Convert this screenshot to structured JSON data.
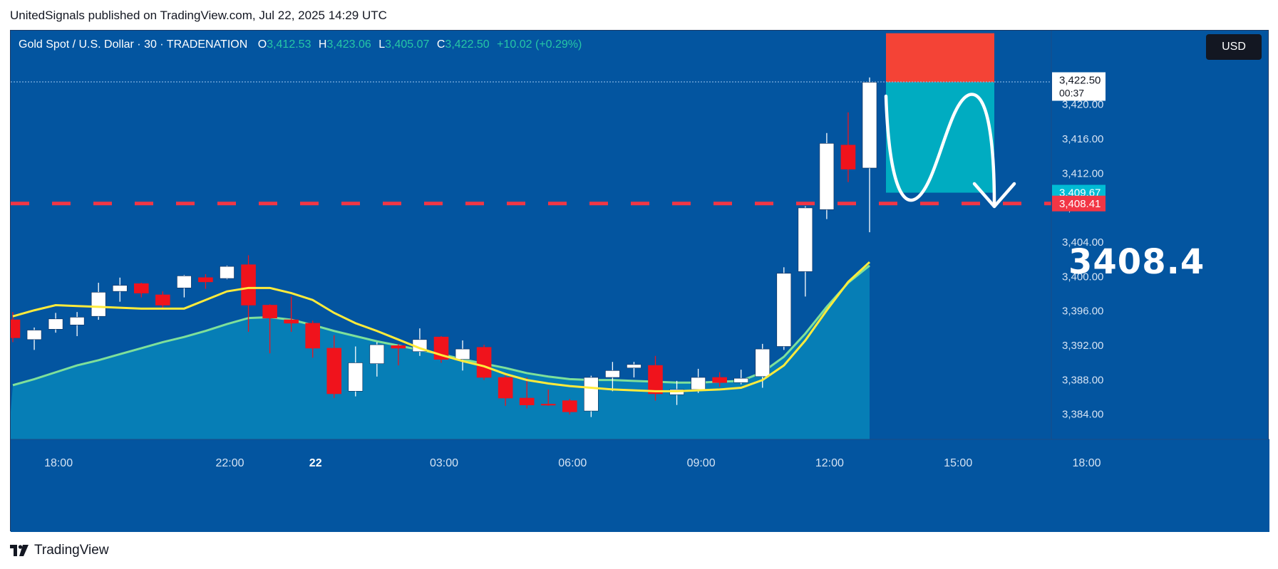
{
  "header": {
    "published": "UnitedSignals published on TradingView.com, Jul 22, 2025 14:29 UTC"
  },
  "legend": {
    "symbol": "Gold Spot / U.S. Dollar · 30 · TRADENATION",
    "open_label": "O",
    "open": "3,412.53",
    "high_label": "H",
    "high": "3,423.06",
    "low_label": "L",
    "low": "3,405.07",
    "close_label": "C",
    "close": "3,422.50",
    "change": "+10.02 (+0.29%)"
  },
  "currency_button": "USD",
  "target_label": "3408.4",
  "footer": {
    "brand": "TradingView"
  },
  "colors": {
    "background": "#0355a0",
    "up_candle": "#ffffff",
    "down_candle": "#f0131c",
    "yellow_ma": "#ffeb3b",
    "green_ma": "#7ee09a",
    "area_fill": "#0aa0c8",
    "stop_zone": "#f44336",
    "target_zone": "#00acc1",
    "dashed_line": "#f23645"
  },
  "chart_data": {
    "type": "candlestick",
    "interval": "30",
    "ylim": [
      3381.0,
      3428.5
    ],
    "y_ticks": [
      "3,384.00",
      "3,388.00",
      "3,392.00",
      "3,396.00",
      "3,400.00",
      "3,404.00",
      "3,408.00",
      "3,412.00",
      "3,416.00",
      "3,420.00"
    ],
    "y_tick_values": [
      3384,
      3388,
      3392,
      3396,
      3400,
      3404,
      3408,
      3412,
      3416,
      3420
    ],
    "x_ticks": [
      "18:00",
      "22:00",
      "22",
      "03:00",
      "06:00",
      "09:00",
      "12:00",
      "15:00",
      "18:00"
    ],
    "x_tick_index": [
      2,
      10,
      14,
      20,
      26,
      32,
      38,
      44,
      50
    ],
    "candles": [
      {
        "o": 3394.9,
        "h": 3395.8,
        "l": 3392.3,
        "c": 3392.8
      },
      {
        "o": 3392.6,
        "h": 3394.0,
        "l": 3391.4,
        "c": 3393.7
      },
      {
        "o": 3393.8,
        "h": 3395.7,
        "l": 3393.4,
        "c": 3395.0
      },
      {
        "o": 3394.3,
        "h": 3395.8,
        "l": 3393.0,
        "c": 3395.2
      },
      {
        "o": 3395.3,
        "h": 3399.2,
        "l": 3394.9,
        "c": 3398.1
      },
      {
        "o": 3398.2,
        "h": 3399.8,
        "l": 3397.0,
        "c": 3398.9
      },
      {
        "o": 3399.1,
        "h": 3399.2,
        "l": 3397.5,
        "c": 3398.0
      },
      {
        "o": 3397.8,
        "h": 3398.2,
        "l": 3396.3,
        "c": 3396.6
      },
      {
        "o": 3398.6,
        "h": 3400.1,
        "l": 3397.5,
        "c": 3400.0
      },
      {
        "o": 3399.8,
        "h": 3400.2,
        "l": 3398.5,
        "c": 3399.3
      },
      {
        "o": 3399.7,
        "h": 3401.2,
        "l": 3399.6,
        "c": 3401.1
      },
      {
        "o": 3401.3,
        "h": 3402.4,
        "l": 3393.5,
        "c": 3396.6
      },
      {
        "o": 3396.6,
        "h": 3396.7,
        "l": 3391.0,
        "c": 3395.1
      },
      {
        "o": 3394.9,
        "h": 3397.6,
        "l": 3393.5,
        "c": 3394.5
      },
      {
        "o": 3394.5,
        "h": 3394.8,
        "l": 3390.5,
        "c": 3391.6
      },
      {
        "o": 3391.6,
        "h": 3393.1,
        "l": 3385.8,
        "c": 3386.3
      },
      {
        "o": 3386.6,
        "h": 3391.8,
        "l": 3386.0,
        "c": 3389.9
      },
      {
        "o": 3389.8,
        "h": 3392.3,
        "l": 3388.3,
        "c": 3392.0
      },
      {
        "o": 3391.9,
        "h": 3392.1,
        "l": 3389.6,
        "c": 3391.6
      },
      {
        "o": 3391.2,
        "h": 3393.9,
        "l": 3390.7,
        "c": 3392.6
      },
      {
        "o": 3392.9,
        "h": 3393.0,
        "l": 3389.9,
        "c": 3390.3
      },
      {
        "o": 3390.3,
        "h": 3392.5,
        "l": 3389.0,
        "c": 3391.5
      },
      {
        "o": 3391.7,
        "h": 3392.0,
        "l": 3387.9,
        "c": 3388.2
      },
      {
        "o": 3388.2,
        "h": 3388.7,
        "l": 3384.9,
        "c": 3385.8
      },
      {
        "o": 3385.8,
        "h": 3388.2,
        "l": 3384.6,
        "c": 3385.0
      },
      {
        "o": 3385.1,
        "h": 3386.8,
        "l": 3384.9,
        "c": 3385.0
      },
      {
        "o": 3385.5,
        "h": 3385.7,
        "l": 3383.9,
        "c": 3384.2
      },
      {
        "o": 3384.3,
        "h": 3388.4,
        "l": 3383.6,
        "c": 3388.2
      },
      {
        "o": 3388.2,
        "h": 3390.0,
        "l": 3386.6,
        "c": 3389.0
      },
      {
        "o": 3389.3,
        "h": 3390.0,
        "l": 3388.2,
        "c": 3389.7
      },
      {
        "o": 3389.6,
        "h": 3390.7,
        "l": 3385.5,
        "c": 3386.3
      },
      {
        "o": 3386.2,
        "h": 3387.8,
        "l": 3385.0,
        "c": 3386.8
      },
      {
        "o": 3386.8,
        "h": 3389.2,
        "l": 3386.4,
        "c": 3388.2
      },
      {
        "o": 3388.2,
        "h": 3388.8,
        "l": 3387.1,
        "c": 3387.6
      },
      {
        "o": 3387.6,
        "h": 3389.1,
        "l": 3387.4,
        "c": 3388.1
      },
      {
        "o": 3388.3,
        "h": 3392.1,
        "l": 3387.0,
        "c": 3391.5
      },
      {
        "o": 3391.8,
        "h": 3401.0,
        "l": 3391.4,
        "c": 3400.3
      },
      {
        "o": 3400.5,
        "h": 3408.1,
        "l": 3397.6,
        "c": 3407.9
      },
      {
        "o": 3407.7,
        "h": 3416.6,
        "l": 3406.6,
        "c": 3415.4
      },
      {
        "o": 3415.2,
        "h": 3419.0,
        "l": 3410.9,
        "c": 3412.4
      },
      {
        "o": 3412.53,
        "h": 3423.06,
        "l": 3405.07,
        "c": 3422.5
      }
    ],
    "ema_yellow": [
      3395.3,
      3396.0,
      3396.6,
      3396.5,
      3396.4,
      3396.3,
      3396.2,
      3396.2,
      3396.2,
      3397.2,
      3398.2,
      3398.6,
      3398.6,
      3398.0,
      3397.2,
      3395.7,
      3394.5,
      3393.6,
      3392.6,
      3391.6,
      3390.8,
      3390.1,
      3389.5,
      3388.6,
      3387.9,
      3387.5,
      3387.2,
      3387.0,
      3386.8,
      3386.7,
      3386.6,
      3386.6,
      3386.7,
      3386.8,
      3387.0,
      3387.9,
      3389.6,
      3392.5,
      3396.0,
      3399.3,
      3401.6
    ],
    "ema_green": [
      3387.3,
      3388.0,
      3388.8,
      3389.6,
      3390.2,
      3390.9,
      3391.6,
      3392.3,
      3392.9,
      3393.6,
      3394.4,
      3395.1,
      3395.2,
      3394.9,
      3394.3,
      3393.6,
      3393.0,
      3392.4,
      3391.9,
      3391.4,
      3390.9,
      3390.3,
      3389.8,
      3389.3,
      3388.7,
      3388.3,
      3388.0,
      3387.9,
      3387.9,
      3387.8,
      3387.7,
      3387.6,
      3387.6,
      3387.7,
      3387.8,
      3388.8,
      3390.6,
      3393.3,
      3396.4,
      3399.2,
      3401.2
    ],
    "current_price_line": 3422.54,
    "entry_line": 3408.41,
    "stop_zone": [
      3422.5,
      3428.2
    ],
    "target_zone": [
      3409.67,
      3422.5
    ],
    "price_labels": [
      {
        "text": "3,422.54",
        "value": 3422.54,
        "color": "#787b86"
      },
      {
        "text": "3,422.50",
        "sub": "00:37",
        "value": 3422.5,
        "color": "#ffffff"
      },
      {
        "text": "3,409.67",
        "value": 3409.67,
        "color": "#00bcd4"
      },
      {
        "text": "3,408.41",
        "value": 3408.41,
        "color": "#f23645"
      }
    ],
    "annotation": "3408.4"
  }
}
